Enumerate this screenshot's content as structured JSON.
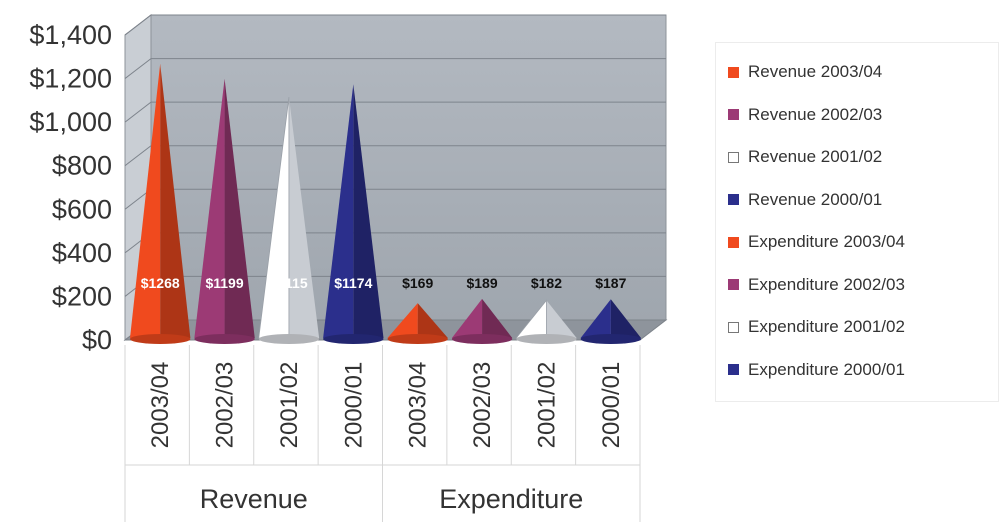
{
  "chart_data": {
    "type": "bar",
    "style": "3d-cone",
    "groups": [
      "Revenue",
      "Expenditure"
    ],
    "categories": [
      "2003/04",
      "2002/03",
      "2001/02",
      "2000/01"
    ],
    "series": [
      {
        "name": "Revenue 2003/04",
        "group": "Revenue",
        "category": "2003/04",
        "value": 1268,
        "label": "$1268",
        "color": "#f04a1e"
      },
      {
        "name": "Revenue 2002/03",
        "group": "Revenue",
        "category": "2002/03",
        "value": 1199,
        "label": "$1199",
        "color": "#9c3a75"
      },
      {
        "name": "Revenue 2001/02",
        "group": "Revenue",
        "category": "2001/02",
        "value": 1115,
        "label": "$1115",
        "color": "#ffffff"
      },
      {
        "name": "Revenue 2000/01",
        "group": "Revenue",
        "category": "2000/01",
        "value": 1174,
        "label": "$1174",
        "color": "#2b2f8c"
      },
      {
        "name": "Expenditure 2003/04",
        "group": "Expenditure",
        "category": "2003/04",
        "value": 169,
        "label": "$169",
        "color": "#f04a1e"
      },
      {
        "name": "Expenditure 2002/03",
        "group": "Expenditure",
        "category": "2002/03",
        "value": 189,
        "label": "$189",
        "color": "#9c3a75"
      },
      {
        "name": "Expenditure 2001/02",
        "group": "Expenditure",
        "category": "2001/02",
        "value": 182,
        "label": "$182",
        "color": "#ffffff"
      },
      {
        "name": "Expenditure 2000/01",
        "group": "Expenditure",
        "category": "2000/01",
        "value": 187,
        "label": "$187",
        "color": "#2b2f8c"
      }
    ],
    "y_ticks": [
      "$0",
      "$200",
      "$400",
      "$600",
      "$800",
      "$1,000",
      "$1,200",
      "$1,400"
    ],
    "ylim": [
      0,
      1400
    ],
    "grid": true,
    "legend_position": "right",
    "title": "",
    "xlabel": "",
    "ylabel": ""
  }
}
